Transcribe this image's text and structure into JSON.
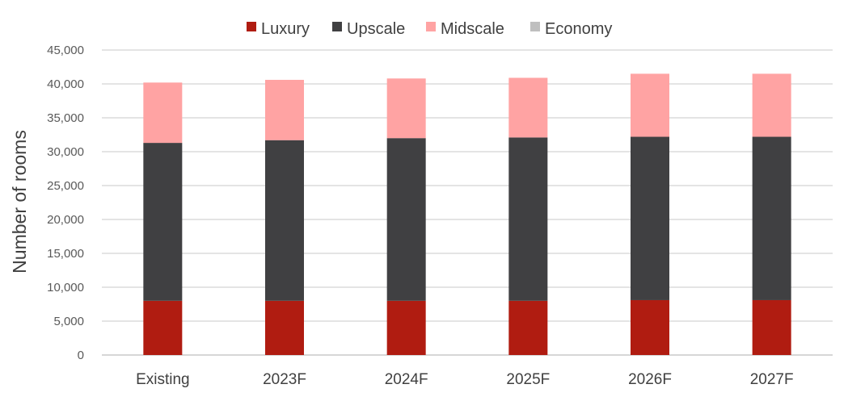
{
  "chart_data": {
    "type": "bar",
    "stacked": true,
    "title": "",
    "xlabel": "",
    "ylabel": "Number of rooms",
    "ylim": [
      0,
      45000
    ],
    "y_ticks": [
      0,
      5000,
      10000,
      15000,
      20000,
      25000,
      30000,
      35000,
      40000,
      45000
    ],
    "y_tick_labels": [
      "0",
      "5,000",
      "10,000",
      "15,000",
      "20,000",
      "25,000",
      "30,000",
      "35,000",
      "40,000",
      "45,000"
    ],
    "categories": [
      "Existing",
      "2023F",
      "2024F",
      "2025F",
      "2026F",
      "2027F"
    ],
    "series": [
      {
        "name": "Luxury",
        "color": "#b01c11",
        "values": [
          8000,
          8000,
          8000,
          8000,
          8100,
          8100
        ]
      },
      {
        "name": "Upscale",
        "color": "#404042",
        "values": [
          23300,
          23700,
          24000,
          24100,
          24100,
          24100
        ]
      },
      {
        "name": "Midscale",
        "color": "#ffa3a3",
        "values": [
          8900,
          8900,
          8800,
          8800,
          9300,
          9300
        ]
      },
      {
        "name": "Economy",
        "color": "#bfbfbf",
        "values": [
          0,
          0,
          0,
          0,
          0,
          0
        ]
      }
    ],
    "grid": true,
    "legend_position": "top-center"
  }
}
